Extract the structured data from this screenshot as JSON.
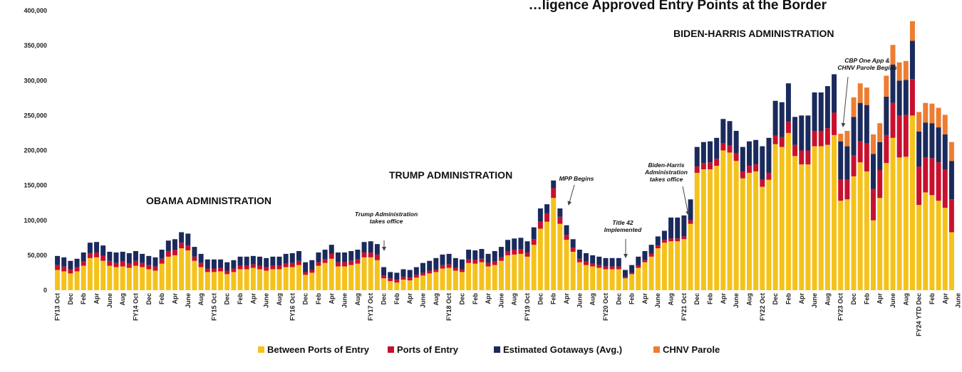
{
  "chart_data": {
    "type": "bar",
    "stacked": true,
    "title": "…ligence Approved Entry Points at the Border",
    "ylim": [
      0,
      400000
    ],
    "y_ticks": [
      "0",
      "50,000",
      "100,000",
      "150,000",
      "200,000",
      "250,000",
      "300,000",
      "350,000",
      "400,000"
    ],
    "x_tick_labels": [
      "FY13 Oct",
      "Dec",
      "Feb",
      "Apr",
      "June",
      "Aug",
      "FY14 Oct",
      "Dec",
      "Feb",
      "Apr",
      "June",
      "Aug",
      "FY15 Oct",
      "Dec",
      "Feb",
      "Apr",
      "June",
      "Aug",
      "FY16 Oct",
      "Dec",
      "Feb",
      "Apr",
      "June",
      "Aug",
      "FY17 Oct",
      "Dec",
      "Feb",
      "Apr",
      "June",
      "Aug",
      "FY18 Oct",
      "Dec",
      "Feb",
      "Apr",
      "June",
      "Aug",
      "FY19 Oct",
      "Dec",
      "Feb",
      "Apr",
      "June",
      "Aug",
      "FY20 Oct",
      "Dec",
      "Feb",
      "Apr",
      "June",
      "Aug",
      "FY21 Oct",
      "Dec",
      "Feb",
      "Apr",
      "June",
      "Aug",
      "FY22 Oct",
      "Dec",
      "Feb",
      "Apr",
      "June",
      "Aug",
      "FY23 Oct",
      "Dec",
      "Feb",
      "Apr",
      "June",
      "Aug",
      "FY24 YTD Dec",
      "Feb",
      "Apr",
      "June"
    ],
    "series": [
      {
        "name": "Between Ports of Entry",
        "color": "#F5C21B",
        "values": [
          29000,
          27000,
          24000,
          27000,
          35000,
          46000,
          47000,
          42000,
          35000,
          33000,
          34000,
          32000,
          35000,
          33000,
          30000,
          28000,
          38000,
          48000,
          50000,
          60000,
          57000,
          42000,
          33000,
          26000,
          26000,
          27000,
          23000,
          26000,
          30000,
          30000,
          32000,
          30000,
          28000,
          30000,
          30000,
          33000,
          33000,
          36000,
          22000,
          25000,
          35000,
          39000,
          45000,
          34000,
          34000,
          36000,
          38000,
          47000,
          47000,
          43000,
          17000,
          13000,
          11000,
          15000,
          14000,
          18000,
          21000,
          24000,
          26000,
          31000,
          32000,
          28000,
          26000,
          39000,
          38000,
          40000,
          34000,
          36000,
          42000,
          50000,
          51000,
          52000,
          48000,
          65000,
          88000,
          98000,
          132000,
          95000,
          72000,
          55000,
          40000,
          36000,
          34000,
          32000,
          30000,
          30000,
          30000,
          17000,
          23000,
          32000,
          40000,
          48000,
          60000,
          68000,
          70000,
          70000,
          73000,
          95000,
          168000,
          173000,
          173000,
          178000,
          200000,
          197000,
          185000,
          160000,
          168000,
          170000,
          148000,
          158000,
          209000,
          205000,
          225000,
          192000,
          180000,
          180000,
          206000,
          206000,
          208000,
          222000,
          128000,
          130000,
          163000,
          183000,
          170000,
          100000,
          132000,
          182000,
          218000,
          190000,
          191000,
          250000,
          122000,
          140000,
          136000,
          128000,
          118000,
          83000
        ]
      },
      {
        "name": "Ports of Entry",
        "color": "#C8102E",
        "values": [
          7000,
          7000,
          6000,
          6000,
          6000,
          7000,
          7000,
          7000,
          7000,
          6000,
          7000,
          6000,
          7000,
          6000,
          6000,
          6000,
          7000,
          8000,
          8000,
          8000,
          7000,
          6000,
          6000,
          5000,
          5000,
          5000,
          5000,
          5000,
          5000,
          5000,
          5000,
          5000,
          5000,
          5000,
          5000,
          5000,
          6000,
          6000,
          4000,
          4000,
          5000,
          5000,
          7000,
          6000,
          6000,
          6000,
          6000,
          7000,
          7000,
          8000,
          4000,
          4000,
          4000,
          4000,
          4000,
          4000,
          4000,
          4000,
          4000,
          5000,
          5000,
          4000,
          4000,
          5000,
          5000,
          5000,
          5000,
          5000,
          5000,
          6000,
          7000,
          7000,
          6000,
          8000,
          10000,
          12000,
          14000,
          10000,
          7000,
          6000,
          5000,
          5000,
          4000,
          4000,
          4000,
          4000,
          4000,
          2000,
          2000,
          3000,
          3000,
          4000,
          4000,
          4000,
          4000,
          4000,
          4000,
          5000,
          9000,
          9000,
          10000,
          10000,
          10000,
          10000,
          11000,
          10000,
          10000,
          10000,
          10000,
          10000,
          12000,
          14000,
          16000,
          16000,
          20000,
          20000,
          22000,
          22000,
          24000,
          32000,
          30000,
          28000,
          30000,
          30000,
          40000,
          45000,
          40000,
          40000,
          50000,
          60000,
          60000,
          52000,
          55000,
          50000,
          53000,
          55000,
          55000,
          47000
        ]
      },
      {
        "name": "Estimated Gotaways (Avg.)",
        "color": "#1B2A5C",
        "values": [
          13000,
          13000,
          12000,
          12000,
          13000,
          15000,
          15000,
          15000,
          13000,
          15000,
          14000,
          15000,
          14000,
          13000,
          13000,
          13000,
          13000,
          15000,
          15000,
          15000,
          17000,
          14000,
          13000,
          13000,
          13000,
          12000,
          12000,
          12000,
          13000,
          13000,
          12000,
          13000,
          13000,
          13000,
          13000,
          14000,
          14000,
          14000,
          14000,
          14000,
          14000,
          14000,
          13000,
          14000,
          14000,
          14000,
          14000,
          15000,
          16000,
          15000,
          12000,
          9000,
          10000,
          11000,
          11000,
          11000,
          14000,
          14000,
          16000,
          15000,
          15000,
          14000,
          14000,
          14000,
          14000,
          14000,
          13000,
          15000,
          15000,
          16000,
          16000,
          16000,
          16000,
          17000,
          19000,
          13000,
          11000,
          12000,
          14000,
          12000,
          13000,
          12000,
          12000,
          12000,
          12000,
          12000,
          12000,
          10000,
          11000,
          13000,
          13000,
          13000,
          13000,
          13000,
          30000,
          30000,
          30000,
          30000,
          28000,
          30000,
          30000,
          30000,
          35000,
          35000,
          32000,
          35000,
          35000,
          35000,
          48000,
          50000,
          50000,
          50000,
          55000,
          40000,
          50000,
          50000,
          55000,
          55000,
          60000,
          55000,
          55000,
          48000,
          55000,
          55000,
          55000,
          50000,
          40000,
          55000,
          55000,
          50000,
          50000,
          55000,
          50000,
          50000,
          50000,
          50000,
          50000,
          55000
        ]
      },
      {
        "name": "CHNV Parole",
        "color": "#ED7D31",
        "values": [
          0,
          0,
          0,
          0,
          0,
          0,
          0,
          0,
          0,
          0,
          0,
          0,
          0,
          0,
          0,
          0,
          0,
          0,
          0,
          0,
          0,
          0,
          0,
          0,
          0,
          0,
          0,
          0,
          0,
          0,
          0,
          0,
          0,
          0,
          0,
          0,
          0,
          0,
          0,
          0,
          0,
          0,
          0,
          0,
          0,
          0,
          0,
          0,
          0,
          0,
          0,
          0,
          0,
          0,
          0,
          0,
          0,
          0,
          0,
          0,
          0,
          0,
          0,
          0,
          0,
          0,
          0,
          0,
          0,
          0,
          0,
          0,
          0,
          0,
          0,
          0,
          0,
          0,
          0,
          0,
          0,
          0,
          0,
          0,
          0,
          0,
          0,
          0,
          0,
          0,
          0,
          0,
          0,
          0,
          0,
          0,
          0,
          0,
          0,
          0,
          0,
          0,
          0,
          0,
          0,
          0,
          0,
          0,
          0,
          0,
          0,
          0,
          0,
          0,
          0,
          0,
          0,
          0,
          0,
          0,
          11000,
          22000,
          28000,
          28000,
          25000,
          28000,
          27000,
          30000,
          28000,
          26000,
          27000,
          28000,
          28000,
          28000,
          28000,
          28000,
          28000,
          27000
        ]
      }
    ],
    "era_labels": [
      {
        "text": "OBAMA ADMINISTRATION"
      },
      {
        "text": "TRUMP ADMINISTRATION"
      },
      {
        "text": "BIDEN-HARRIS ADMINISTRATION"
      }
    ],
    "annotations": [
      {
        "lines": [
          "Trump Administration",
          "takes office"
        ]
      },
      {
        "lines": [
          "MPP Begins"
        ]
      },
      {
        "lines": [
          "Title 42",
          "Implemented"
        ]
      },
      {
        "lines": [
          "Biden-Harris",
          "Administration",
          "takes office"
        ]
      },
      {
        "lines": [
          "CBP One App &",
          "CHNV Parole Begins"
        ]
      }
    ],
    "legend": {
      "position": "bottom",
      "items": [
        "Between Ports of Entry",
        "Ports of Entry",
        "Estimated Gotaways (Avg.)",
        "CHNV Parole"
      ]
    }
  }
}
